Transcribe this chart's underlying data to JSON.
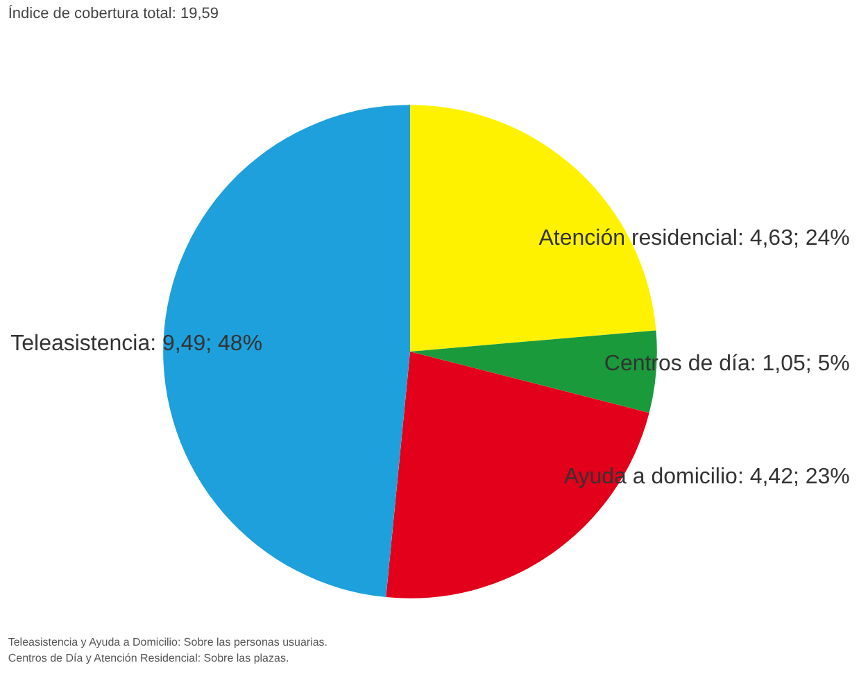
{
  "chart_data": {
    "type": "pie",
    "title": "Índice de cobertura total: 19,59",
    "categories": [
      "Atención residencial",
      "Centros de día",
      "Ayuda a domicilio",
      "Teleasistencia"
    ],
    "values": [
      4.63,
      1.05,
      4.42,
      9.49
    ],
    "colors": [
      "#fff200",
      "#1a9a3a",
      "#e2001a",
      "#1ea0dc"
    ],
    "value_labels": [
      "4,63; 24%",
      "1,05; 5%",
      "4,42; 23%",
      "9,49; 48%"
    ],
    "annotations": [
      "Teleasistencia y Ayuda a Domicilio: Sobre las personas usuarias.",
      "Centros de Día y Atención Residencial: Sobre las plazas."
    ]
  }
}
